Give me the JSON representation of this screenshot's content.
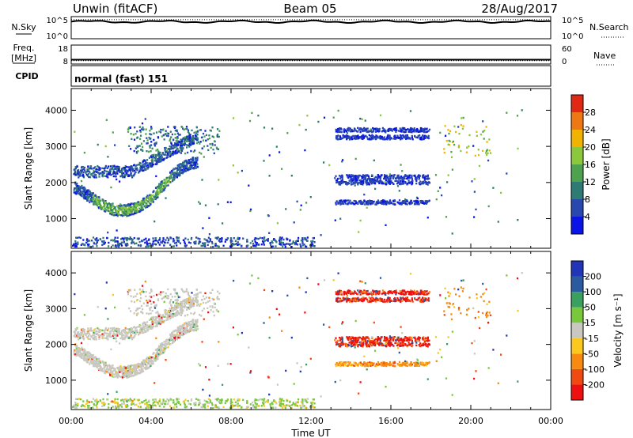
{
  "header": {
    "radar": "Unwin (fitACF)",
    "beam": "Beam 05",
    "date": "28/Aug/2017"
  },
  "noise_panel": {
    "left_label": "N.Sky",
    "left_ticks": [
      "10^5",
      "10^0"
    ],
    "right_ticks": [
      "10^5",
      "10^0"
    ],
    "right_label": "N.Search",
    "search_level": 0.86,
    "sky_level": 0.77
  },
  "freq_panel": {
    "left_label_1": "Freq.",
    "left_label_2": "[MHz]",
    "left_ticks": [
      "18",
      "8"
    ],
    "right_ticks": [
      "60",
      "0"
    ],
    "right_label": "Nave",
    "freq_mhz": 10.3,
    "nave": 10.5
  },
  "cpid_panel": {
    "label": "CPID",
    "text": "normal (fast) 151"
  },
  "x_axis": {
    "label": "Time UT",
    "ticks": [
      "00:00",
      "04:00",
      "08:00",
      "12:00",
      "16:00",
      "20:00",
      "00:00"
    ]
  },
  "colors": {
    "power": [
      "#0a14e6",
      "#2848b0",
      "#2e7a74",
      "#4ea24e",
      "#8cc83c",
      "#f2b200",
      "#f07814",
      "#e02814"
    ],
    "velocity": [
      "#ee1010",
      "#f04a10",
      "#f88a10",
      "#fbc820",
      "#c8c8c0",
      "#78c83c",
      "#3aa060",
      "#2a5aa0",
      "#2035b8"
    ]
  },
  "chart_data": [
    {
      "type": "heatmap",
      "title": "",
      "xlabel": "Time UT",
      "ylabel": "Slant Range [km]",
      "xlim": [
        0,
        24
      ],
      "ylim": [
        180,
        4600
      ],
      "y_ticks": [
        "1000",
        "2000",
        "3000",
        "4000"
      ],
      "y_tick_values": [
        1000,
        2000,
        3000,
        4000
      ],
      "colorbar": {
        "label": "Power [dB]",
        "ticks": [
          "4",
          "8",
          "12",
          "16",
          "20",
          "24",
          "28"
        ],
        "tick_values": [
          4,
          8,
          12,
          16,
          20,
          24,
          28
        ],
        "range": [
          0,
          32
        ]
      }
    },
    {
      "type": "heatmap",
      "title": "",
      "xlabel": "Time UT",
      "ylabel": "Slant Range [km]",
      "xlim": [
        0,
        24
      ],
      "ylim": [
        180,
        4600
      ],
      "y_ticks": [
        "1000",
        "2000",
        "3000",
        "4000"
      ],
      "y_tick_values": [
        1000,
        2000,
        3000,
        4000
      ],
      "colorbar": {
        "label": "Velocity [m s⁻¹]",
        "ticks": [
          "-200",
          "-100",
          "-50",
          "-15",
          "15",
          "50",
          "100",
          "200"
        ],
        "bounds": [
          "-300",
          "-200",
          "-100",
          "-50",
          "-15",
          "15",
          "50",
          "100",
          "200",
          "300"
        ]
      }
    }
  ]
}
